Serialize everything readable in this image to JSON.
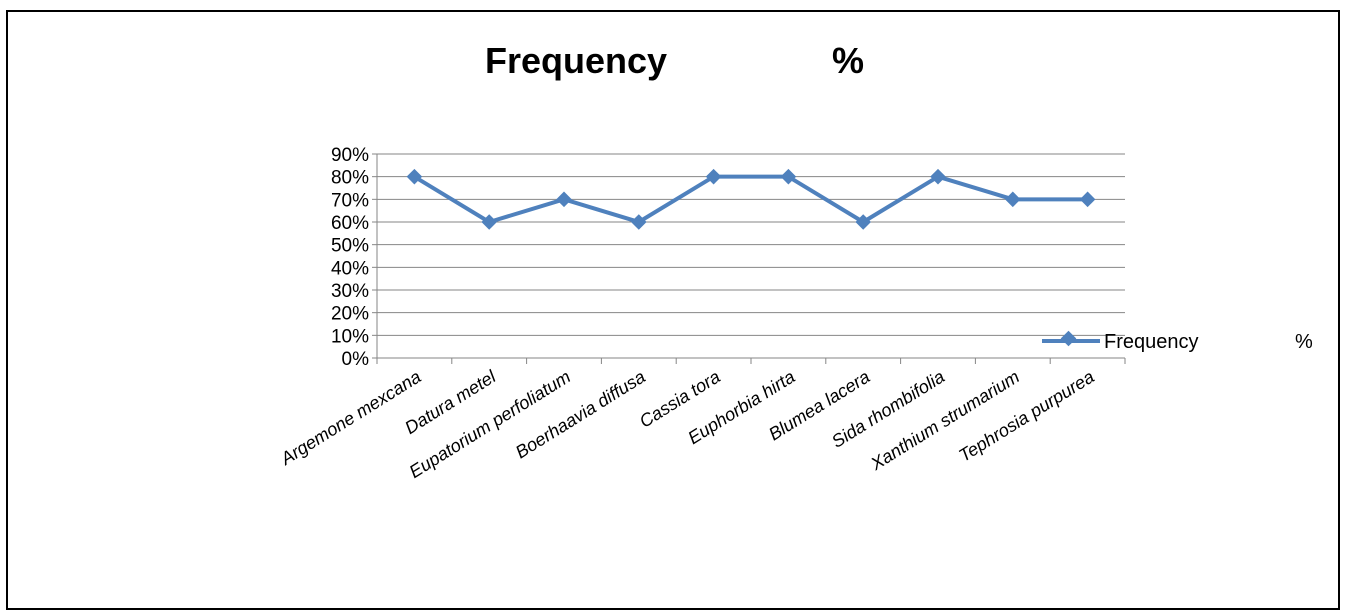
{
  "chart_data": {
    "type": "line",
    "title": "Frequency",
    "title_suffix": "%",
    "categories": [
      "Argemone mexcana",
      "Datura metel",
      "Eupatorium perfoliatum",
      "Boerhaavia diffusa",
      "Cassia tora",
      "Euphorbia hirta",
      "Blumea lacera",
      "Sida rhombifolia",
      "Xanthium strumarium",
      "Tephrosia purpurea"
    ],
    "series": [
      {
        "name": "Frequency",
        "name_suffix": "%",
        "values": [
          80,
          60,
          70,
          60,
          80,
          80,
          60,
          80,
          70,
          70
        ],
        "color": "#4f81bd"
      }
    ],
    "yticks": [
      "0%",
      "10%",
      "20%",
      "30%",
      "40%",
      "50%",
      "60%",
      "70%",
      "80%",
      "90%"
    ],
    "ylim": [
      0,
      90
    ],
    "grid": true,
    "legend_position": "right",
    "xlabel": "",
    "ylabel": ""
  }
}
